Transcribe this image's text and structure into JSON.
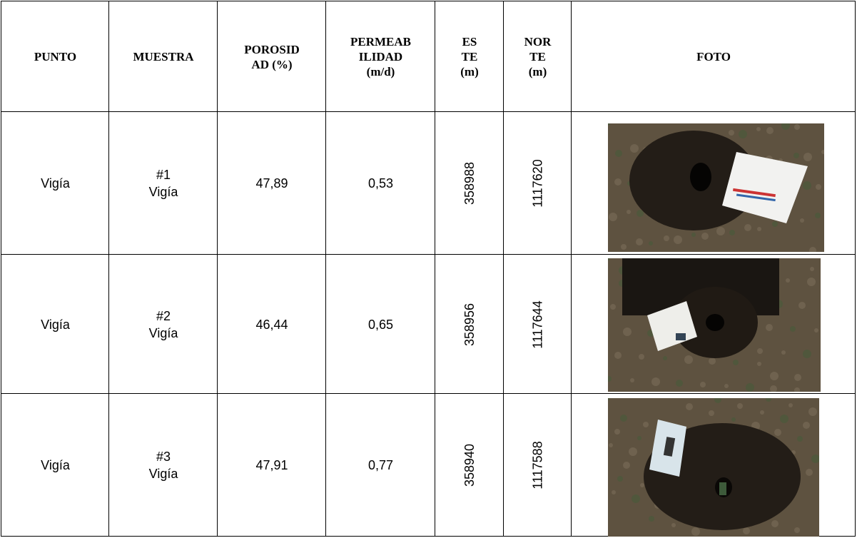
{
  "table": {
    "header": [
      [
        "PUNTO"
      ],
      [
        "MUESTRA"
      ],
      [
        "POROSID",
        "AD (%)"
      ],
      [
        "PERMEAB",
        "ILIDAD",
        "(m/d)"
      ],
      [
        "ES",
        "TE",
        "(m)"
      ],
      [
        "NOR",
        "TE",
        "(m)"
      ],
      [
        "FOTO"
      ]
    ],
    "rows": [
      [
        "Vigía",
        [
          "#1",
          "Vigía"
        ],
        "47,89",
        "0,53",
        "358988",
        "1117620"
      ],
      [
        "Vigía",
        [
          "#2",
          "Vigía"
        ],
        "46,44",
        "0,65",
        "358956",
        "1117644"
      ],
      [
        "Vigía",
        [
          "#3",
          "Vigía"
        ],
        "47,91",
        "0,77",
        "358940",
        "1117588"
      ]
    ]
  }
}
